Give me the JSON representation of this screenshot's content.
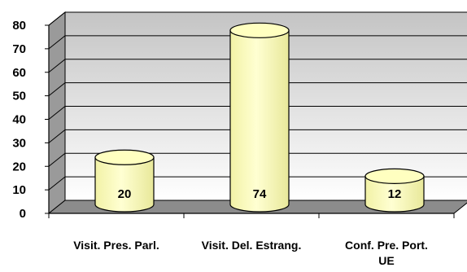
{
  "chart_data": {
    "type": "bar",
    "categories": [
      "Visit. Pres. Parl.",
      "Visit. Del. Estrang.",
      "Conf. Pre. Port. UE"
    ],
    "category_lines": [
      [
        "Visit. Pres. Parl."
      ],
      [
        "Visit. Del. Estrang."
      ],
      [
        "Conf. Pre. Port.",
        "UE"
      ]
    ],
    "values": [
      20,
      74,
      12
    ],
    "data_labels": [
      "20",
      "74",
      "12"
    ],
    "ylim": [
      0,
      80
    ],
    "yticks": [
      "0",
      "10",
      "20",
      "30",
      "40",
      "50",
      "60",
      "70",
      "80"
    ],
    "grid": true,
    "legend": "none",
    "colors": {
      "bar_fill": "#ffffc0",
      "bar_stroke": "#000000",
      "floor": "#8c8c8c",
      "wall_top": "#c4c4c4",
      "wall_bottom": "#ffffff"
    }
  }
}
